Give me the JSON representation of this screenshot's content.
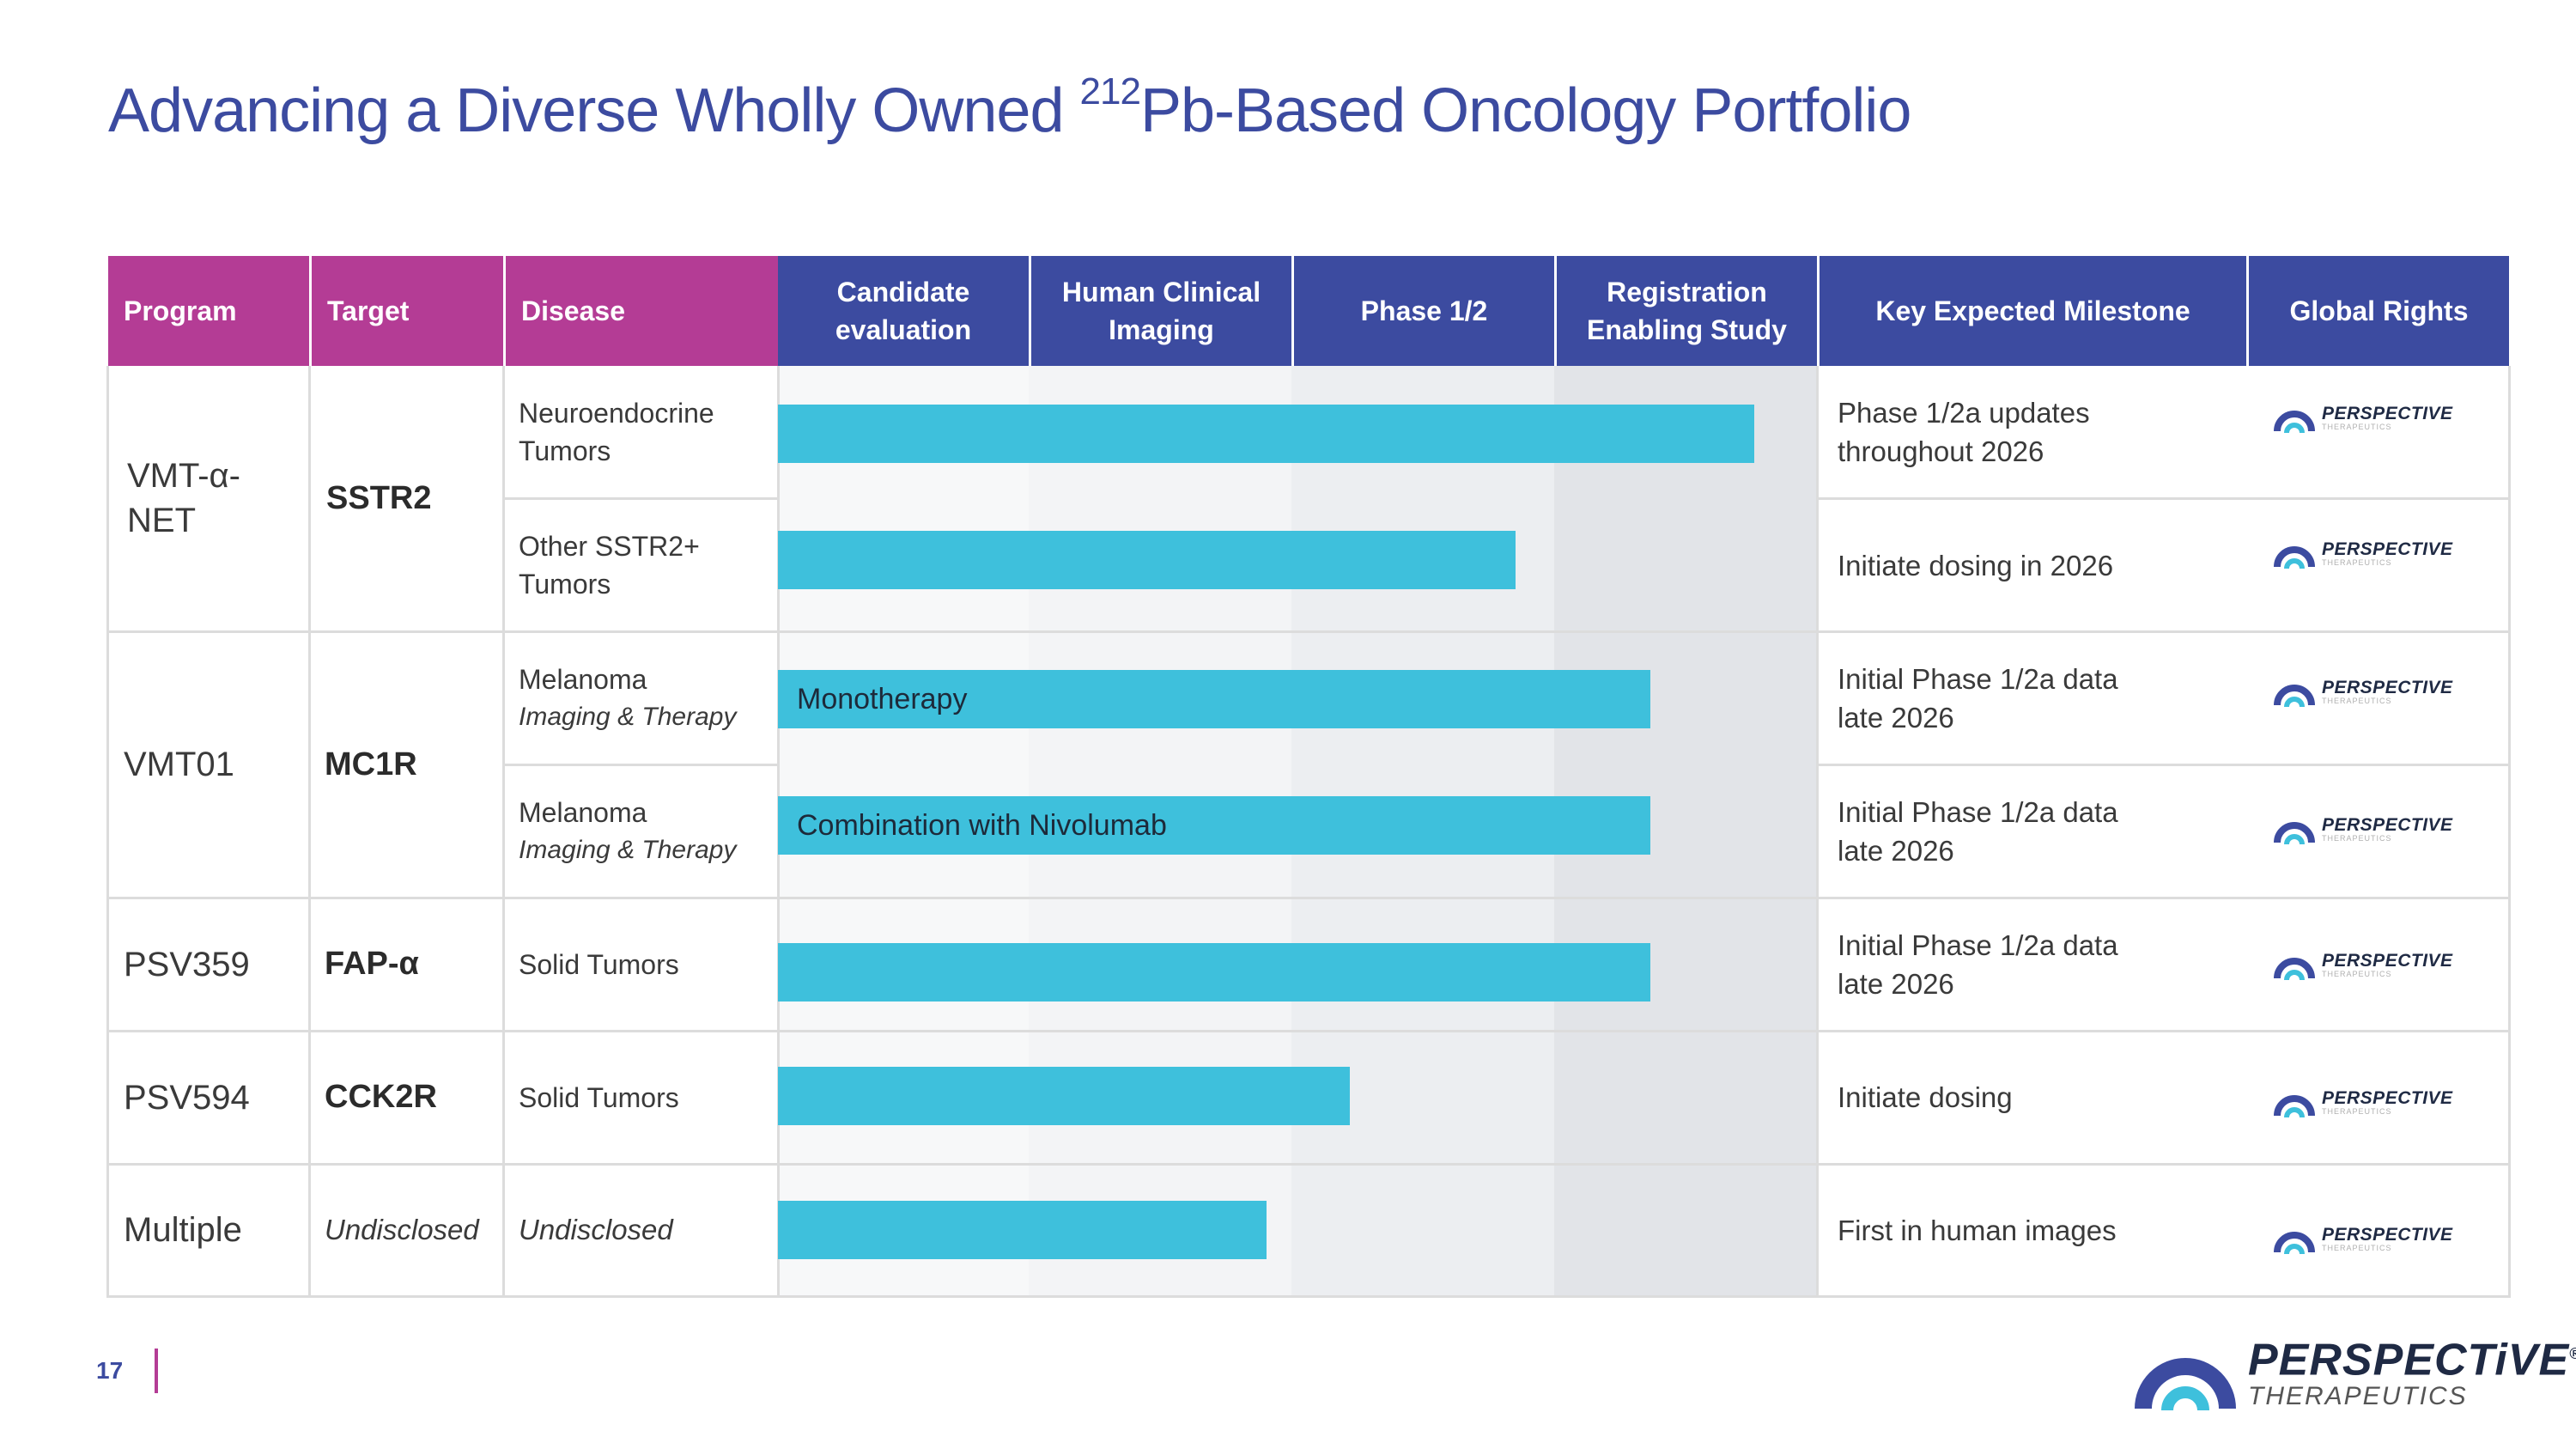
{
  "title": {
    "prefix": "Advancing a Diverse Wholly Owned ",
    "superscript": "212",
    "suffix": "Pb-Based Oncology Portfolio"
  },
  "header": {
    "program": "Program",
    "target": "Target",
    "disease": "Disease",
    "candidate": "Candidate evaluation",
    "imaging": "Human Clinical Imaging",
    "phase": "Phase 1/2",
    "registration": "Registration Enabling Study",
    "milestone": "Key Expected Milestone",
    "rights": "Global Rights"
  },
  "colors": {
    "magenta": "#b43c95",
    "navy": "#3c4ba0",
    "bar": "#3ec0dc"
  },
  "programs": [
    {
      "program": "VMT-α-NET",
      "target": "SSTR2"
    },
    {
      "program": "VMT01",
      "target": "MC1R"
    },
    {
      "program": "PSV359",
      "target": "FAP-α"
    },
    {
      "program": "PSV594",
      "target": "CCK2R"
    },
    {
      "program": "Multiple",
      "target": "Undisclosed"
    }
  ],
  "rows": [
    {
      "disease": "Neuroendocrine Tumors",
      "disease_sub": "",
      "bar_label": "",
      "progress": 0.94,
      "milestone": "Phase 1/2a updates throughout 2026"
    },
    {
      "disease": "Other SSTR2+ Tumors",
      "disease_sub": "",
      "bar_label": "",
      "progress": 0.71,
      "milestone": "Initiate dosing in 2026"
    },
    {
      "disease": "Melanoma",
      "disease_sub": "Imaging & Therapy",
      "bar_label": "Monotherapy",
      "progress": 0.84,
      "milestone": "Initial Phase 1/2a data late 2026"
    },
    {
      "disease": "Melanoma",
      "disease_sub": "Imaging & Therapy",
      "bar_label": "Combination with Nivolumab",
      "progress": 0.84,
      "milestone": "Initial Phase 1/2a data late 2026"
    },
    {
      "disease": "Solid Tumors",
      "disease_sub": "",
      "bar_label": "",
      "progress": 0.84,
      "milestone": "Initial Phase 1/2a data late 2026"
    },
    {
      "disease": "Solid Tumors",
      "disease_sub": "",
      "bar_label": "",
      "progress": 0.55,
      "milestone": "Initiate dosing"
    },
    {
      "disease": "Undisclosed",
      "disease_sub": "",
      "bar_label": "",
      "progress": 0.47,
      "milestone": "First in human images"
    }
  ],
  "rights_logo": {
    "word": "PERSPECTIVE",
    "sub": "THERAPEUTICS",
    "icon": "perspective-logo-icon"
  },
  "footer": {
    "page_number": "17",
    "logo_word": "PERSPECTiVE",
    "logo_sub": "THERAPEUTICS",
    "logo_mark": "®"
  }
}
